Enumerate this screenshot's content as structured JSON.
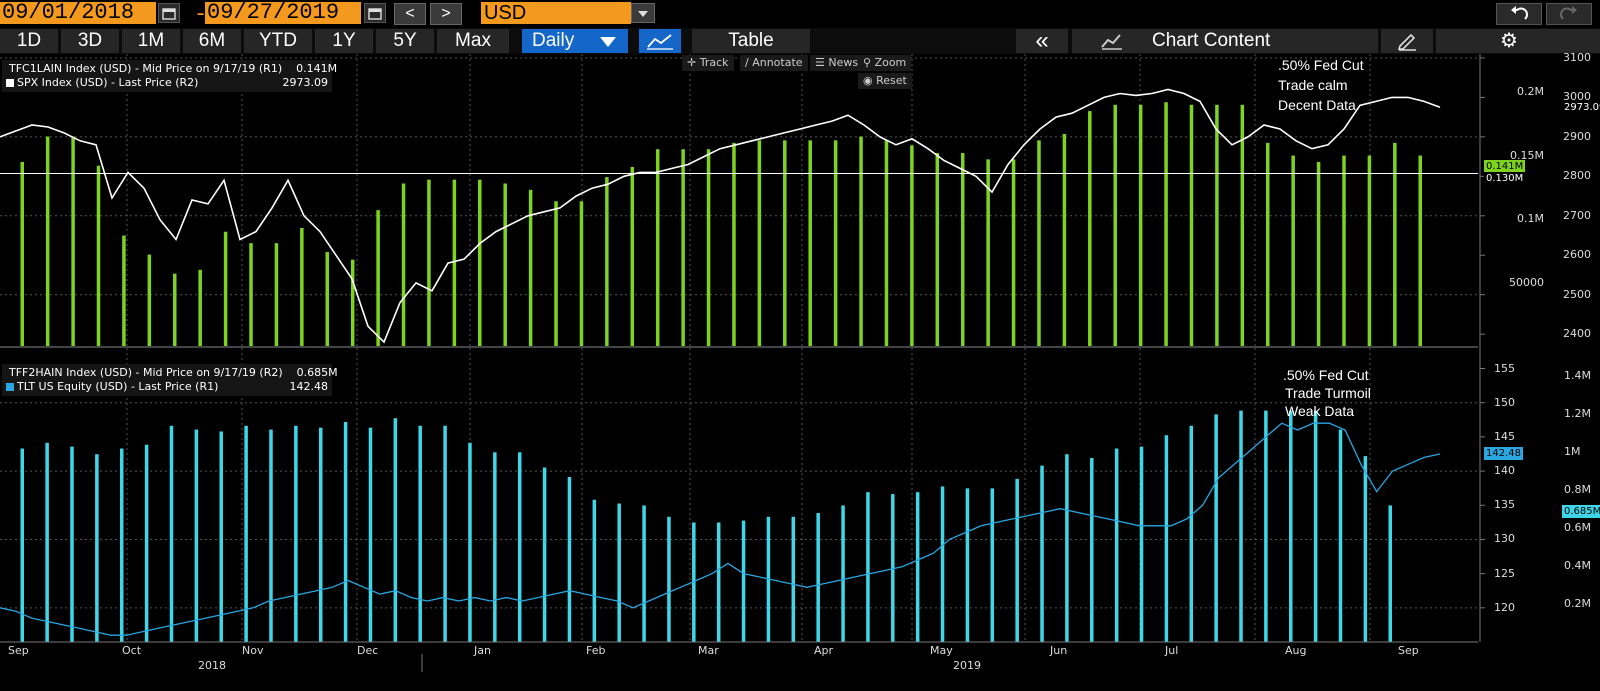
{
  "header": {
    "start_date": "09/01/2018",
    "end_date": "09/27/2019",
    "date_separator": "-",
    "currency": "USD",
    "prev_label": "<",
    "next_label": ">"
  },
  "toolbar": {
    "ranges": [
      "1D",
      "3D",
      "1M",
      "6M",
      "YTD",
      "1Y",
      "5Y",
      "Max"
    ],
    "frequency": "Daily",
    "table_label": "Table",
    "collapse_label": "«",
    "chart_content_label": "Chart Content"
  },
  "chart_tools": {
    "track": "Track",
    "annotate": "Annotate",
    "news": "News",
    "zoom": "Zoom",
    "reset": "Reset"
  },
  "colors": {
    "green": "#7ed321",
    "cyan": "#3fd7e8",
    "tlt_line": "#2aa6e0",
    "orange": "#f39a1e",
    "active": "#1466c8"
  },
  "chart_data": [
    {
      "type": "bar+line",
      "legend_position": "top-left",
      "legend": [
        {
          "name": "TFC1LAIN Index (USD) - Mid Price on 9/17/19 (R1)",
          "value": "0.141M",
          "color": "#7ed321"
        },
        {
          "name": "SPX Index (USD) - Last Price (R2)",
          "value": "2973.09",
          "color": "#ffffff"
        }
      ],
      "annotations": [
        ".50% Fed Cut",
        "Trade calm",
        "Decent Data"
      ],
      "reference_line": {
        "value": 2807,
        "label": "0.130M"
      },
      "last_tags": [
        "2973.09",
        "0.141M"
      ],
      "axis_r1": {
        "ticks": [
          "50000",
          "0.1M",
          "0.15M",
          "0.2M"
        ]
      },
      "axis_r2": {
        "range": [
          2370,
          3110
        ],
        "ticks": [
          "2400",
          "2500",
          "2600",
          "2700",
          "2800",
          "2900",
          "3000",
          "3100"
        ]
      },
      "bars_r1": [
        0.145,
        0.165,
        0.165,
        0.142,
        0.087,
        0.072,
        0.057,
        0.06,
        0.09,
        0.081,
        0.081,
        0.093,
        0.074,
        0.068,
        0.107,
        0.128,
        0.131,
        0.131,
        0.131,
        0.128,
        0.123,
        0.114,
        0.114,
        0.133,
        0.141,
        0.155,
        0.155,
        0.155,
        0.16,
        0.162,
        0.162,
        0.162,
        0.162,
        0.165,
        0.162,
        0.158,
        0.152,
        0.152,
        0.147,
        0.147,
        0.162,
        0.167,
        0.185,
        0.19,
        0.19,
        0.192,
        0.19,
        0.19,
        0.19,
        0.16,
        0.15,
        0.145,
        0.15,
        0.15,
        0.16,
        0.15
      ],
      "spx_line": [
        2900,
        2915,
        2930,
        2925,
        2910,
        2890,
        2880,
        2745,
        2810,
        2770,
        2690,
        2640,
        2740,
        2730,
        2790,
        2640,
        2660,
        2720,
        2790,
        2700,
        2660,
        2600,
        2540,
        2420,
        2380,
        2480,
        2530,
        2510,
        2580,
        2590,
        2630,
        2660,
        2680,
        2700,
        2710,
        2720,
        2750,
        2770,
        2780,
        2800,
        2810,
        2810,
        2820,
        2830,
        2850,
        2870,
        2880,
        2890,
        2900,
        2910,
        2920,
        2930,
        2940,
        2955,
        2930,
        2900,
        2880,
        2895,
        2870,
        2840,
        2820,
        2800,
        2760,
        2830,
        2880,
        2920,
        2950,
        2960,
        2980,
        3000,
        3010,
        3005,
        3010,
        3020,
        3010,
        2990,
        2920,
        2880,
        2900,
        2930,
        2920,
        2890,
        2870,
        2880,
        2920,
        2980,
        2990,
        3000,
        3000,
        2990,
        2975
      ],
      "x_ticks": [
        "Sep",
        "Oct",
        "Nov",
        "Dec",
        "Jan",
        "Feb",
        "Mar",
        "Apr",
        "May",
        "Jun",
        "Jul",
        "Aug",
        "Sep"
      ],
      "years": [
        "2018",
        "2019"
      ]
    },
    {
      "type": "bar+line",
      "legend_position": "top-left",
      "legend": [
        {
          "name": "TFF2HAIN Index (USD) - Mid Price on 9/17/19 (R2)",
          "value": "0.685M",
          "color": "#3fd7e8"
        },
        {
          "name": "TLT US Equity (USD) - Last Price (R1)",
          "value": "142.48",
          "color": "#2aa6e0"
        }
      ],
      "annotations": [
        ".50% Fed Cut",
        "Trade Turmoil",
        "Weak Data"
      ],
      "last_tags": [
        "142.48",
        "0.685M"
      ],
      "axis_r1": {
        "range": [
          115,
          158
        ],
        "ticks": [
          "120",
          "125",
          "130",
          "135",
          "140",
          "145",
          "150",
          "155"
        ]
      },
      "axis_r2": {
        "ticks": [
          "0.2M",
          "0.4M",
          "0.6M",
          "0.8M",
          "1M",
          "1.2M",
          "1.4M"
        ]
      },
      "bars_r2": [
        1.02,
        1.05,
        1.03,
        0.99,
        1.02,
        1.04,
        1.14,
        1.12,
        1.11,
        1.14,
        1.12,
        1.14,
        1.13,
        1.16,
        1.13,
        1.18,
        1.14,
        1.14,
        1.05,
        1.0,
        1.0,
        0.92,
        0.87,
        0.75,
        0.73,
        0.72,
        0.66,
        0.63,
        0.63,
        0.64,
        0.66,
        0.66,
        0.68,
        0.72,
        0.79,
        0.78,
        0.79,
        0.82,
        0.81,
        0.81,
        0.86,
        0.93,
        0.99,
        0.97,
        1.02,
        1.03,
        1.09,
        1.14,
        1.2,
        1.22,
        1.22,
        1.22,
        1.22,
        1.12,
        0.98,
        0.72
      ],
      "tlt_line": [
        120,
        119.5,
        118.5,
        118,
        117.5,
        117,
        116.5,
        116,
        116,
        116.5,
        117,
        117.5,
        118,
        118.5,
        119,
        119.5,
        120,
        121,
        121.5,
        122,
        122.5,
        123,
        124,
        123,
        122,
        122.5,
        121.5,
        121,
        121.5,
        121,
        121.5,
        121,
        121.5,
        121,
        121.5,
        122,
        122.5,
        122,
        121.5,
        121,
        120,
        121,
        122,
        123,
        124,
        125,
        126.5,
        125,
        124.5,
        124,
        123.5,
        123,
        123.5,
        124,
        124.5,
        125,
        125.5,
        126,
        127,
        128,
        130,
        131,
        132,
        132.5,
        133,
        133.5,
        134,
        134.5,
        134,
        133.5,
        133,
        132.5,
        132,
        132,
        132,
        133,
        135,
        139,
        141,
        143,
        145,
        147,
        146,
        147,
        147,
        146,
        141,
        137,
        140,
        141,
        142,
        142.5
      ],
      "x_ticks": [
        "Sep",
        "Oct",
        "Nov",
        "Dec",
        "Jan",
        "Feb",
        "Mar",
        "Apr",
        "May",
        "Jun",
        "Jul",
        "Aug",
        "Sep"
      ],
      "years": [
        "2018",
        "2019"
      ]
    }
  ]
}
